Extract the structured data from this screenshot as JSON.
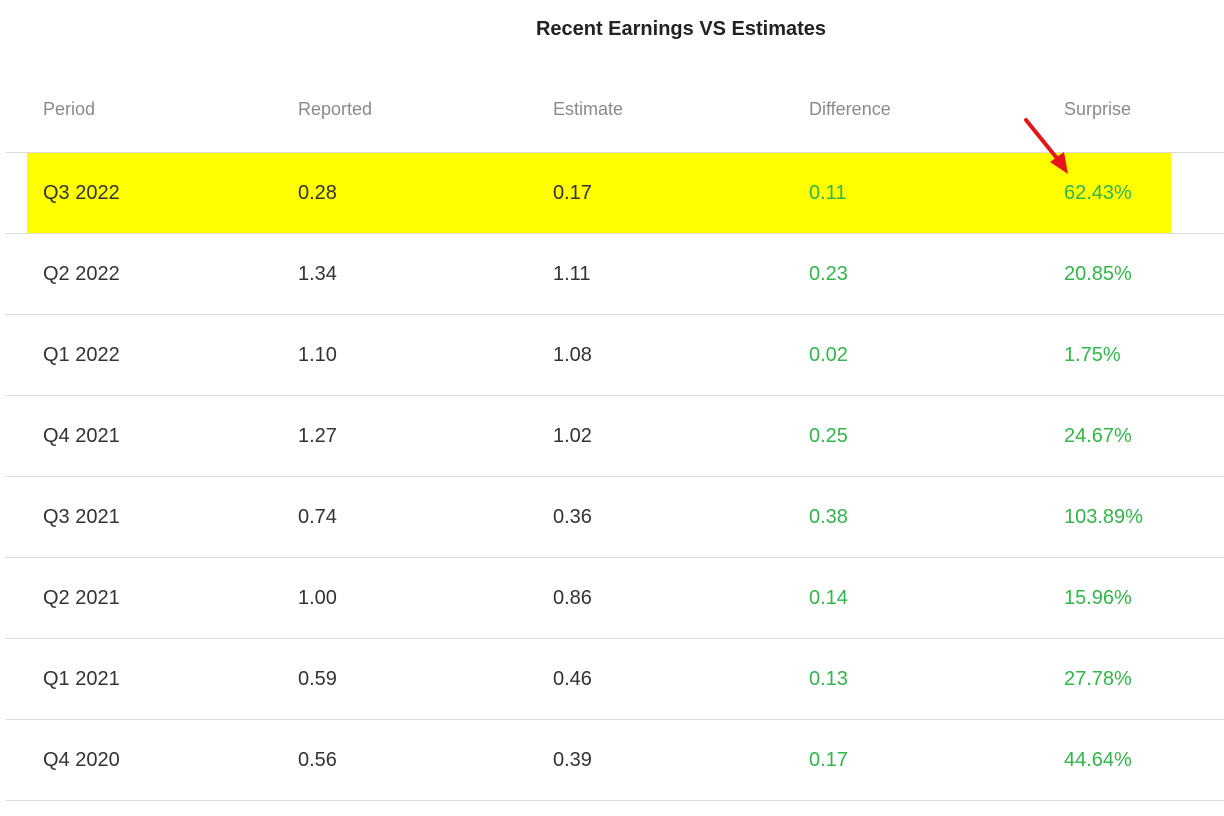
{
  "title": "Recent Earnings VS Estimates",
  "columns": [
    "Period",
    "Reported",
    "Estimate",
    "Difference",
    "Surprise"
  ],
  "rows": [
    {
      "period": "Q3 2022",
      "reported": "0.28",
      "estimate": "0.17",
      "difference": "0.11",
      "surprise": "62.43%"
    },
    {
      "period": "Q2 2022",
      "reported": "1.34",
      "estimate": "1.11",
      "difference": "0.23",
      "surprise": "20.85%"
    },
    {
      "period": "Q1 2022",
      "reported": "1.10",
      "estimate": "1.08",
      "difference": "0.02",
      "surprise": "1.75%"
    },
    {
      "period": "Q4 2021",
      "reported": "1.27",
      "estimate": "1.02",
      "difference": "0.25",
      "surprise": "24.67%"
    },
    {
      "period": "Q3 2021",
      "reported": "0.74",
      "estimate": "0.36",
      "difference": "0.38",
      "surprise": "103.89%"
    },
    {
      "period": "Q2 2021",
      "reported": "1.00",
      "estimate": "0.86",
      "difference": "0.14",
      "surprise": "15.96%"
    },
    {
      "period": "Q1 2021",
      "reported": "0.59",
      "estimate": "0.46",
      "difference": "0.13",
      "surprise": "27.78%"
    },
    {
      "period": "Q4 2020",
      "reported": "0.56",
      "estimate": "0.39",
      "difference": "0.17",
      "surprise": "44.64%"
    }
  ],
  "colors": {
    "highlight": "#ffff00",
    "positive": "#33b54a",
    "annotation_arrow": "#e8141b"
  },
  "annotation": {
    "icon": "red-arrow-icon"
  }
}
